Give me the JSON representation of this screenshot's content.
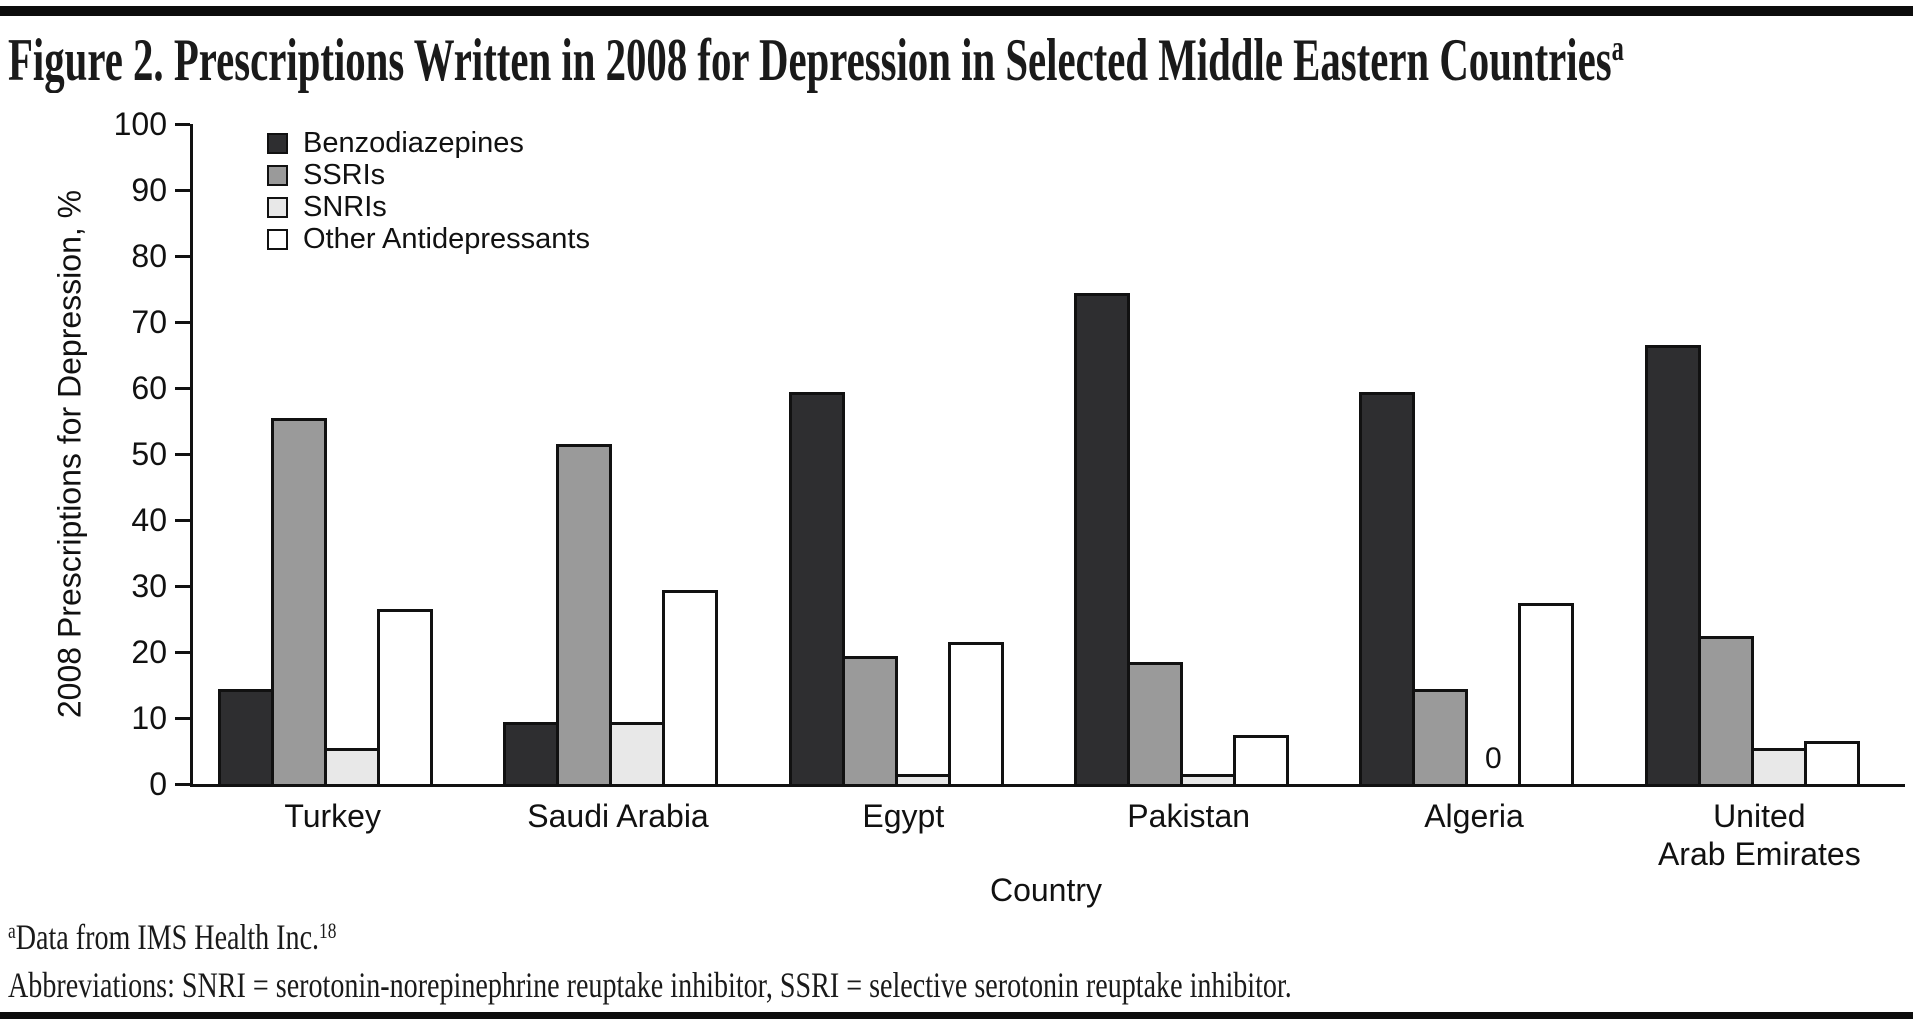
{
  "title": {
    "text": "Figure 2. Prescriptions Written in 2008 for Depression in Selected Middle Eastern Countries",
    "superscript": "a"
  },
  "chart_data": {
    "type": "bar",
    "title": "Figure 2. Prescriptions Written in 2008 for Depression in Selected Middle Eastern Countries",
    "xlabel": "Country",
    "ylabel": "2008 Prescriptions for Depression, %",
    "ylim": [
      0,
      100
    ],
    "yticks": [
      0,
      10,
      20,
      30,
      40,
      50,
      60,
      70,
      80,
      90,
      100
    ],
    "grid": false,
    "legend_position": "top-left-inside",
    "categories": [
      "Turkey",
      "Saudi Arabia",
      "Egypt",
      "Pakistan",
      "Algeria",
      "United Arab Emirates"
    ],
    "category_label_lines": [
      [
        "Turkey"
      ],
      [
        "Saudi Arabia"
      ],
      [
        "Egypt"
      ],
      [
        "Pakistan"
      ],
      [
        "Algeria"
      ],
      [
        "United",
        "Arab Emirates"
      ]
    ],
    "series": [
      {
        "name": "Benzodiazepines",
        "color": "#2e2e30",
        "values": [
          14,
          9,
          59,
          74,
          59,
          66
        ]
      },
      {
        "name": "SSRIs",
        "color": "#9a9a9a",
        "values": [
          55,
          51,
          19,
          18,
          14,
          22
        ]
      },
      {
        "name": "SNRIs",
        "color": "#e8e8e8",
        "values": [
          5,
          9,
          1,
          1,
          0,
          5
        ]
      },
      {
        "name": "Other Antidepressants",
        "color": "#ffffff",
        "values": [
          26,
          29,
          21,
          7,
          27,
          6
        ]
      }
    ],
    "zero_value_label": "0",
    "bar_outline_color": "#111111"
  },
  "footnotes": {
    "source": {
      "marker": "a",
      "text": "Data from IMS Health Inc.",
      "reference": "18"
    },
    "abbreviations": "Abbreviations: SNRI = serotonin-norepinephrine reuptake inhibitor, SSRI = selective serotonin reuptake inhibitor."
  }
}
